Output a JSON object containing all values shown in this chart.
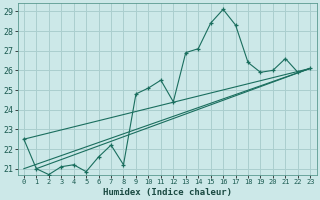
{
  "xlabel": "Humidex (Indice chaleur)",
  "ylabel": "",
  "bg_color": "#cce8e8",
  "grid_color": "#aacece",
  "line_color": "#1a6e5e",
  "xlim": [
    -0.5,
    23.5
  ],
  "ylim": [
    20.7,
    29.4
  ],
  "xticks": [
    0,
    1,
    2,
    3,
    4,
    5,
    6,
    7,
    8,
    9,
    10,
    11,
    12,
    13,
    14,
    15,
    16,
    17,
    18,
    19,
    20,
    21,
    22,
    23
  ],
  "yticks": [
    21,
    22,
    23,
    24,
    25,
    26,
    27,
    28,
    29
  ],
  "series": [
    [
      0,
      22.5
    ],
    [
      1,
      21.0
    ],
    [
      2,
      20.7
    ],
    [
      3,
      21.1
    ],
    [
      4,
      21.2
    ],
    [
      5,
      20.85
    ],
    [
      6,
      21.6
    ],
    [
      7,
      22.2
    ],
    [
      8,
      21.2
    ],
    [
      9,
      24.8
    ],
    [
      10,
      25.1
    ],
    [
      11,
      25.5
    ],
    [
      12,
      24.4
    ],
    [
      13,
      26.9
    ],
    [
      14,
      27.1
    ],
    [
      15,
      28.4
    ],
    [
      16,
      29.1
    ],
    [
      17,
      28.3
    ],
    [
      18,
      26.4
    ],
    [
      19,
      25.9
    ],
    [
      20,
      26.0
    ],
    [
      21,
      26.6
    ],
    [
      22,
      25.9
    ],
    [
      23,
      26.1
    ]
  ],
  "line2": [
    [
      0,
      22.5
    ],
    [
      23,
      26.1
    ]
  ],
  "line3": [
    [
      0,
      21.0
    ],
    [
      23,
      26.1
    ]
  ],
  "line4": [
    [
      1,
      21.0
    ],
    [
      23,
      26.1
    ]
  ]
}
